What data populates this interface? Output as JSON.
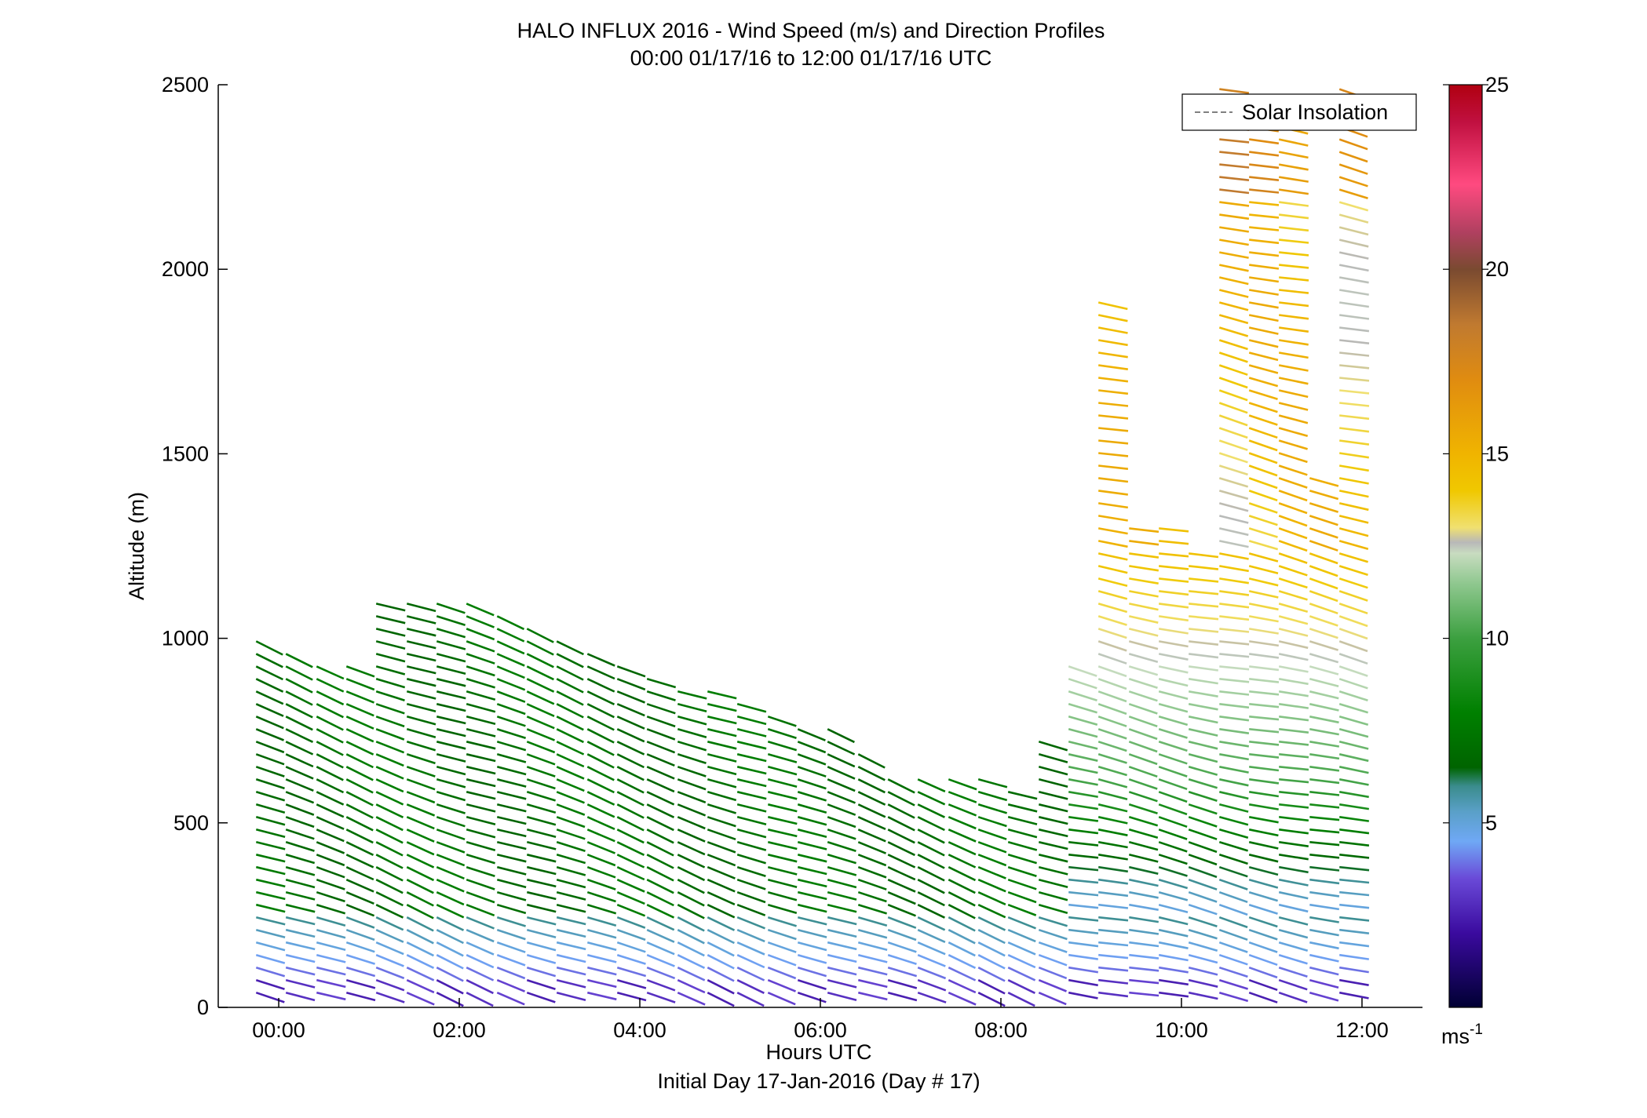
{
  "chart_data": {
    "type": "scatter",
    "title": "HALO INFLUX 2016 - Wind Speed (m/s) and Direction Profiles",
    "subtitle": "00:00 01/17/16 to 12:00 01/17/16  UTC",
    "xlabel": "Hours UTC",
    "xlabel2": "Initial Day 17-Jan-2016 (Day # 17)",
    "ylabel": "Altitude (m)",
    "xlim": [
      -0.67,
      12.67
    ],
    "ylim": [
      0,
      2500
    ],
    "x_ticks": [
      {
        "value": 0,
        "label": "00:00"
      },
      {
        "value": 2,
        "label": "02:00"
      },
      {
        "value": 4,
        "label": "04:00"
      },
      {
        "value": 6,
        "label": "06:00"
      },
      {
        "value": 8,
        "label": "08:00"
      },
      {
        "value": 10,
        "label": "10:00"
      },
      {
        "value": 12,
        "label": "12:00"
      }
    ],
    "y_ticks": [
      {
        "value": 0,
        "label": "0"
      },
      {
        "value": 500,
        "label": "500"
      },
      {
        "value": 1000,
        "label": "1000"
      },
      {
        "value": 1500,
        "label": "1500"
      },
      {
        "value": 2000,
        "label": "2000"
      },
      {
        "value": 2500,
        "label": "2500"
      }
    ],
    "legend": {
      "position": "top-right",
      "entries": [
        {
          "label": "Solar Insolation",
          "style": "dashed",
          "color": "#808080"
        }
      ]
    },
    "colorbar": {
      "min": 0,
      "max": 25,
      "ticks": [
        {
          "value": 5,
          "label": "5"
        },
        {
          "value": 10,
          "label": "10"
        },
        {
          "value": 15,
          "label": "15"
        },
        {
          "value": 20,
          "label": "20"
        },
        {
          "value": 25,
          "label": "25"
        }
      ],
      "unit_label": "ms",
      "unit_exponent": "-1",
      "stops": [
        {
          "value": 0,
          "color": "#000033"
        },
        {
          "value": 2,
          "color": "#3a0a9e"
        },
        {
          "value": 3.5,
          "color": "#6a4ad8"
        },
        {
          "value": 4.5,
          "color": "#6fa8f5"
        },
        {
          "value": 5.3,
          "color": "#5aa0c8"
        },
        {
          "value": 6,
          "color": "#3a8c8c"
        },
        {
          "value": 6.5,
          "color": "#006400"
        },
        {
          "value": 8,
          "color": "#008000"
        },
        {
          "value": 10,
          "color": "#3ca040"
        },
        {
          "value": 11.5,
          "color": "#90c890"
        },
        {
          "value": 12.3,
          "color": "#c8dcc0"
        },
        {
          "value": 12.6,
          "color": "#b8b8b8"
        },
        {
          "value": 13,
          "color": "#f0e070"
        },
        {
          "value": 14,
          "color": "#f0c800"
        },
        {
          "value": 15,
          "color": "#f0b400"
        },
        {
          "value": 17,
          "color": "#e08c10"
        },
        {
          "value": 18.5,
          "color": "#c07a30"
        },
        {
          "value": 20,
          "color": "#7a4a30"
        },
        {
          "value": 21,
          "color": "#b04060"
        },
        {
          "value": 22.3,
          "color": "#ff4a80"
        },
        {
          "value": 24,
          "color": "#c01040"
        },
        {
          "value": 25,
          "color": "#b00010"
        }
      ]
    },
    "series_profiles": [
      {
        "t": -0.25,
        "top": 1000
      },
      {
        "t": 0.08,
        "top": 960
      },
      {
        "t": 0.42,
        "top": 940
      },
      {
        "t": 0.75,
        "top": 930
      },
      {
        "t": 1.08,
        "top": 1100
      },
      {
        "t": 1.42,
        "top": 1110
      },
      {
        "t": 1.75,
        "top": 1100
      },
      {
        "t": 2.08,
        "top": 1100
      },
      {
        "t": 2.42,
        "top": 1090
      },
      {
        "t": 2.75,
        "top": 1030
      },
      {
        "t": 3.08,
        "top": 1000
      },
      {
        "t": 3.42,
        "top": 980
      },
      {
        "t": 3.75,
        "top": 950
      },
      {
        "t": 4.08,
        "top": 900
      },
      {
        "t": 4.42,
        "top": 880
      },
      {
        "t": 4.75,
        "top": 860
      },
      {
        "t": 5.08,
        "top": 840
      },
      {
        "t": 5.42,
        "top": 820
      },
      {
        "t": 5.75,
        "top": 780
      },
      {
        "t": 6.08,
        "top": 760
      },
      {
        "t": 6.42,
        "top": 700
      },
      {
        "t": 6.75,
        "top": 650
      },
      {
        "t": 7.08,
        "top": 640
      },
      {
        "t": 7.42,
        "top": 630
      },
      {
        "t": 7.75,
        "top": 620
      },
      {
        "t": 8.08,
        "top": 590
      },
      {
        "t": 8.42,
        "top": 740
      },
      {
        "t": 8.75,
        "top": 950
      },
      {
        "t": 9.08,
        "top": 1910
      },
      {
        "t": 9.42,
        "top": 1300
      },
      {
        "t": 9.75,
        "top": 1330
      },
      {
        "t": 10.08,
        "top": 1250
      },
      {
        "t": 10.42,
        "top": 2490
      },
      {
        "t": 10.75,
        "top": 2480
      },
      {
        "t": 11.08,
        "top": 2480
      },
      {
        "t": 11.42,
        "top": 1440
      },
      {
        "t": 11.75,
        "top": 2490
      }
    ],
    "gate_spacing_m": 34,
    "note_speed_model": "speed increases with altitude: ~2-4 m/s near surface, ~7-9 m/s in boundary layer, ~13-18 m/s aloft after 09:00"
  }
}
